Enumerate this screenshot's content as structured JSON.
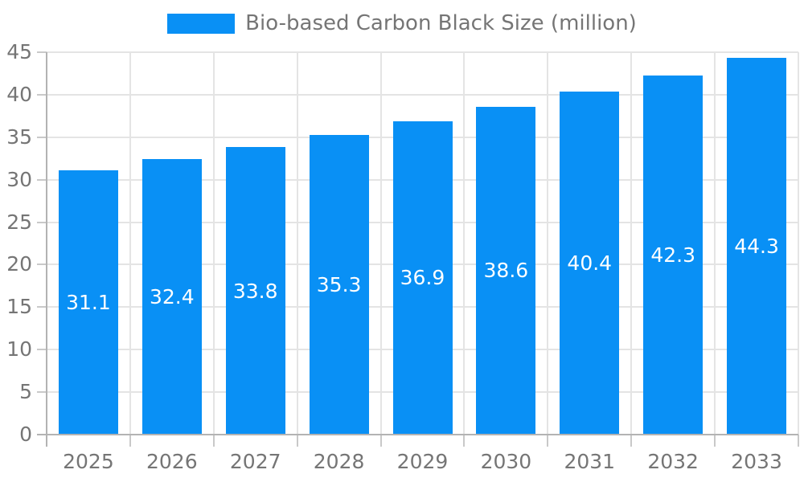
{
  "legend": {
    "label": "Bio-based Carbon Black Size (million)"
  },
  "chart_data": {
    "type": "bar",
    "title": "",
    "xlabel": "",
    "ylabel": "",
    "categories": [
      "2025",
      "2026",
      "2027",
      "2028",
      "2029",
      "2030",
      "2031",
      "2032",
      "2033"
    ],
    "series": [
      {
        "name": "Bio-based Carbon Black Size (million)",
        "values": [
          31.1,
          32.4,
          33.8,
          35.3,
          36.9,
          38.6,
          40.4,
          42.3,
          44.3
        ]
      }
    ],
    "value_labels": [
      "31.1",
      "32.4",
      "33.8",
      "35.3",
      "36.9",
      "38.6",
      "40.4",
      "42.3",
      "44.3"
    ],
    "ylim": [
      0,
      45
    ],
    "yticks": [
      0,
      5,
      10,
      15,
      20,
      25,
      30,
      35,
      40,
      45
    ],
    "grid": true,
    "legend_position": "top-center"
  },
  "colors": {
    "bar": "#0990f5",
    "text": "#757575",
    "value_label_text": "#ffffff",
    "gridline": "#e4e4e4",
    "axis_line": "#b3b3b3",
    "tick": "#c9c9c9",
    "background": "#ffffff"
  }
}
